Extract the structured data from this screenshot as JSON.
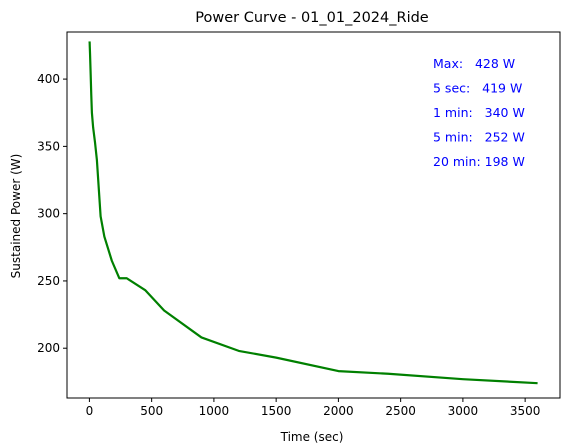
{
  "chart_data": {
    "type": "line",
    "title": "Power Curve - 01_01_2024_Ride",
    "xlabel": "Time (sec)",
    "ylabel": "Sustained Power (W)",
    "xlim": [
      -180,
      3780
    ],
    "ylim": [
      163,
      435
    ],
    "xticks": [
      0,
      500,
      1000,
      1500,
      2000,
      2500,
      3000,
      3500
    ],
    "yticks": [
      200,
      250,
      300,
      350,
      400
    ],
    "grid": false,
    "line_color": "#008000",
    "annotation_color": "#0000ff",
    "series": [
      {
        "x": [
          1,
          2,
          3,
          5,
          10,
          15,
          20,
          30,
          45,
          60,
          90,
          120,
          180,
          240,
          300,
          450,
          600,
          900,
          1200,
          1500,
          2000,
          2400,
          3000,
          3600
        ],
        "y": [
          428,
          427,
          424,
          419,
          404,
          388,
          375,
          364,
          353,
          340,
          298,
          283,
          265,
          252,
          252,
          243,
          228,
          208,
          198,
          193,
          183,
          181,
          177,
          174
        ]
      }
    ],
    "annotations": [
      "Max:   428 W",
      "5 sec:   419 W",
      "1 min:   340 W",
      "5 min:   252 W",
      "20 min: 198 W"
    ]
  }
}
